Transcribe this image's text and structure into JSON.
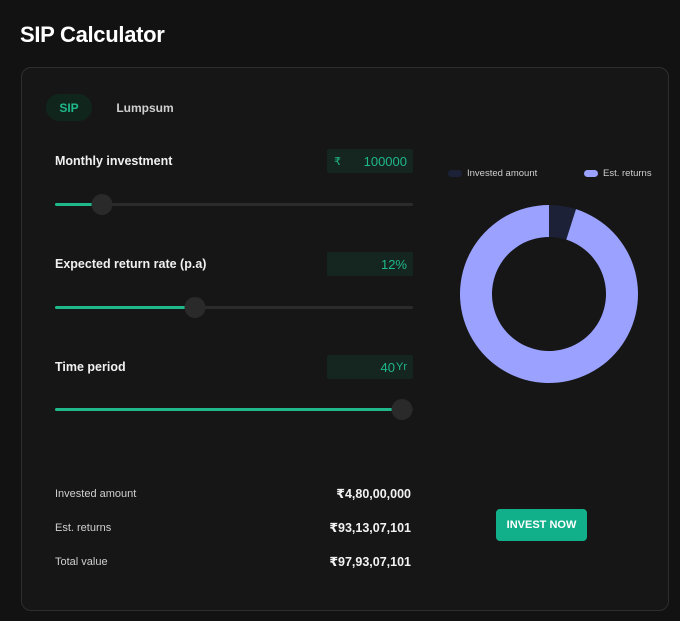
{
  "page": {
    "title": "SIP Calculator"
  },
  "tabs": [
    {
      "label": "SIP",
      "active": true
    },
    {
      "label": "Lumpsum",
      "active": false
    }
  ],
  "inputs": {
    "monthly": {
      "label": "Monthly investment",
      "prefix": "₹",
      "value": "100000",
      "slider_fraction": 0.13
    },
    "rate": {
      "label": "Expected return rate (p.a)",
      "value": "12%",
      "slider_fraction": 0.39
    },
    "period": {
      "label": "Time period",
      "value": "40",
      "unit": "Yr",
      "slider_fraction": 0.97
    }
  },
  "legend": {
    "invested": {
      "label": "Invested amount",
      "color": "#1c2138"
    },
    "returns": {
      "label": "Est. returns",
      "color": "#9aa1ff"
    }
  },
  "chart_data": {
    "type": "pie",
    "donut": true,
    "slices": [
      {
        "name": "Invested amount",
        "value": 48000000,
        "color": "#1c2138"
      },
      {
        "name": "Est. returns",
        "value": 931307101,
        "color": "#9aa1ff"
      }
    ]
  },
  "summary": {
    "invested": {
      "label": "Invested amount",
      "value": "₹4,80,00,000"
    },
    "returns": {
      "label": "Est. returns",
      "value": "₹93,13,07,101"
    },
    "total": {
      "label": "Total value",
      "value": "₹97,93,07,101"
    }
  },
  "cta": {
    "label": "INVEST NOW",
    "color": "#12b08a"
  }
}
